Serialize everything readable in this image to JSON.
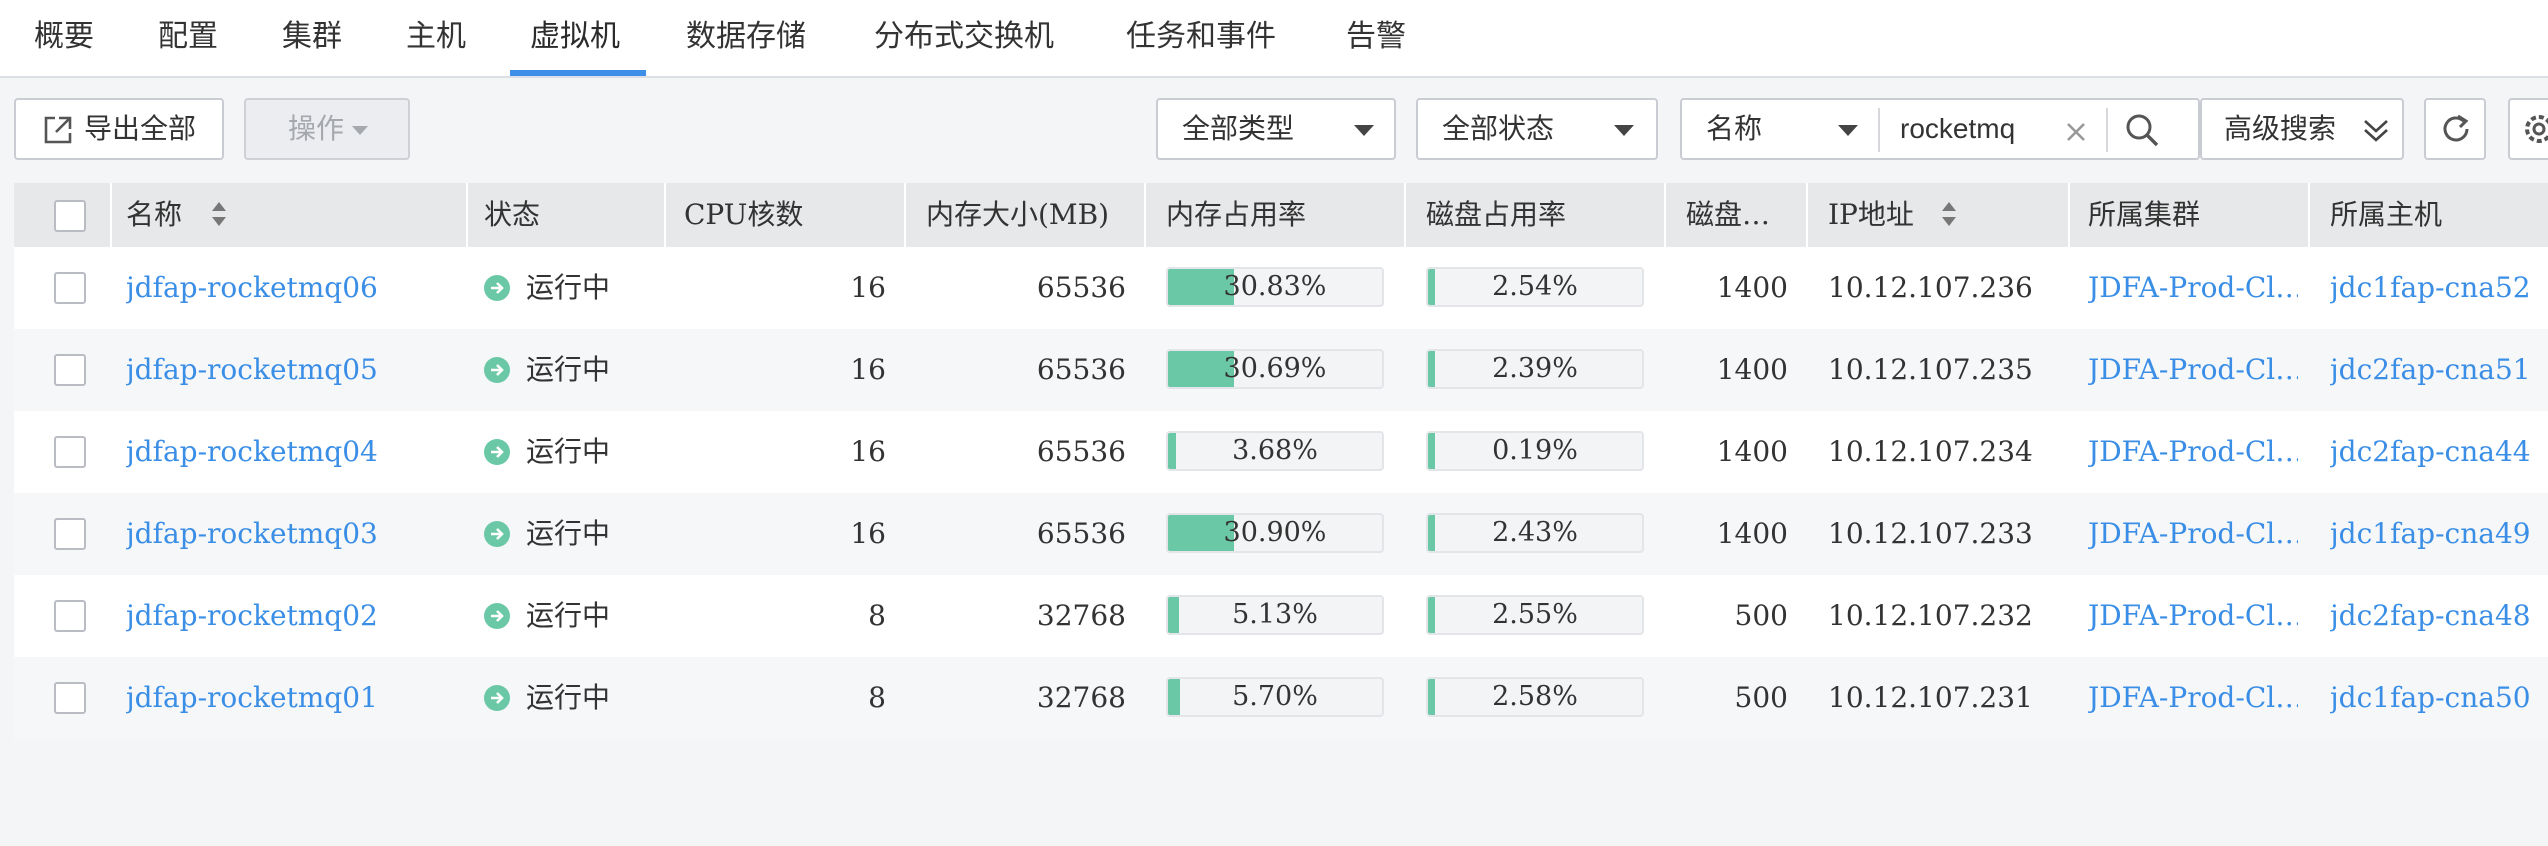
{
  "tabs": [
    {
      "label": "概要"
    },
    {
      "label": "配置"
    },
    {
      "label": "集群"
    },
    {
      "label": "主机"
    },
    {
      "label": "虚拟机",
      "active": true
    },
    {
      "label": "数据存储"
    },
    {
      "label": "分布式交换机"
    },
    {
      "label": "任务和事件"
    },
    {
      "label": "告警"
    }
  ],
  "toolbar": {
    "export_label": "导出全部",
    "operate_label": "操作",
    "type_select": "全部类型",
    "status_select": "全部状态",
    "search_field": "名称",
    "search_value": "rocketmq",
    "advanced_label": "高级搜索"
  },
  "table": {
    "headers": {
      "name": "名称",
      "status": "状态",
      "cpu": "CPU核数",
      "memory": "内存大小(MB)",
      "mem_usage": "内存占用率",
      "disk_usage": "磁盘占用率",
      "disk": "磁盘…",
      "ip": "IP地址",
      "cluster": "所属集群",
      "host": "所属主机"
    },
    "rows": [
      {
        "name": "jdfap-rocketmq06",
        "status": "运行中",
        "cpu": "16",
        "memory": "65536",
        "mem_usage": "30.83%",
        "mem_pct": 30.83,
        "disk_usage": "2.54%",
        "disk_pct": 2.54,
        "disk": "1400",
        "ip": "10.12.107.236",
        "cluster": "JDFA-Prod-Cl…",
        "host": "jdc1fap-cna52"
      },
      {
        "name": "jdfap-rocketmq05",
        "status": "运行中",
        "cpu": "16",
        "memory": "65536",
        "mem_usage": "30.69%",
        "mem_pct": 30.69,
        "disk_usage": "2.39%",
        "disk_pct": 2.39,
        "disk": "1400",
        "ip": "10.12.107.235",
        "cluster": "JDFA-Prod-Cl…",
        "host": "jdc2fap-cna51"
      },
      {
        "name": "jdfap-rocketmq04",
        "status": "运行中",
        "cpu": "16",
        "memory": "65536",
        "mem_usage": "3.68%",
        "mem_pct": 3.68,
        "disk_usage": "0.19%",
        "disk_pct": 0.19,
        "disk": "1400",
        "ip": "10.12.107.234",
        "cluster": "JDFA-Prod-Cl…",
        "host": "jdc2fap-cna44"
      },
      {
        "name": "jdfap-rocketmq03",
        "status": "运行中",
        "cpu": "16",
        "memory": "65536",
        "mem_usage": "30.90%",
        "mem_pct": 30.9,
        "disk_usage": "2.43%",
        "disk_pct": 2.43,
        "disk": "1400",
        "ip": "10.12.107.233",
        "cluster": "JDFA-Prod-Cl…",
        "host": "jdc1fap-cna49"
      },
      {
        "name": "jdfap-rocketmq02",
        "status": "运行中",
        "cpu": "8",
        "memory": "32768",
        "mem_usage": "5.13%",
        "mem_pct": 5.13,
        "disk_usage": "2.55%",
        "disk_pct": 2.55,
        "disk": "500",
        "ip": "10.12.107.232",
        "cluster": "JDFA-Prod-Cl…",
        "host": "jdc2fap-cna48"
      },
      {
        "name": "jdfap-rocketmq01",
        "status": "运行中",
        "cpu": "8",
        "memory": "32768",
        "mem_usage": "5.70%",
        "mem_pct": 5.7,
        "disk_usage": "2.58%",
        "disk_pct": 2.58,
        "disk": "500",
        "ip": "10.12.107.231",
        "cluster": "JDFA-Prod-Cl…",
        "host": "jdc1fap-cna50"
      }
    ]
  },
  "icons": {
    "export": "export-icon",
    "clear": "close-icon",
    "search": "search-icon",
    "advanced": "double-chevron-down-icon",
    "refresh": "refresh-icon",
    "settings": "gear-icon",
    "status": "running-arrow-icon",
    "sort": "sort-icon"
  },
  "colors": {
    "accent": "#3f8ee8",
    "link": "#3a8ee6",
    "usage_fill": "#6ac8a6",
    "status_running": "#6ac8a6"
  }
}
